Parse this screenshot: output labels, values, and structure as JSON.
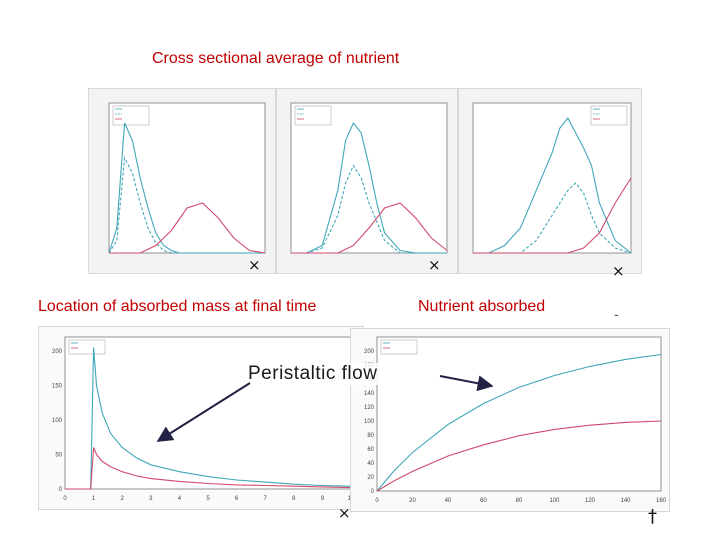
{
  "labels": {
    "top_title": "Cross sectional average of nutrient",
    "bottom_left_title": "Location of absorbed mass at final time",
    "bottom_right_title": "Nutrient absorbed",
    "center_annotation": "Peristaltic flow",
    "marker_x": "×",
    "marker_dagger": "†",
    "stray_dash": "-"
  },
  "colors": {
    "title": "#c00000",
    "peristaltic": "#3fa7b8",
    "poiseuille": "#d04a6a",
    "arrow": "#222244"
  },
  "chart_data": [
    {
      "type": "line",
      "xlim": [
        0,
        10
      ],
      "ylim": [
        0,
        60
      ],
      "legend_position": "top-left",
      "series": [
        {
          "style": "solid",
          "color": "#3fa7b8",
          "x": [
            0,
            0.5,
            1,
            1.5,
            2,
            2.5,
            3,
            3.5,
            4,
            4.5,
            5,
            6,
            7,
            8,
            10
          ],
          "values": [
            0,
            10,
            52,
            45,
            30,
            18,
            8,
            3,
            1,
            0,
            0,
            0,
            0,
            0,
            0
          ]
        },
        {
          "style": "dashed",
          "color": "#3fa7b8",
          "x": [
            0,
            0.5,
            1,
            1.5,
            2,
            2.5,
            3,
            3.5,
            4,
            5,
            10
          ],
          "values": [
            0,
            5,
            38,
            32,
            20,
            10,
            4,
            1,
            0,
            0,
            0
          ]
        },
        {
          "style": "solid",
          "color": "#d04a6a",
          "x": [
            0,
            2,
            3,
            4,
            5,
            6,
            7,
            8,
            9,
            10
          ],
          "values": [
            0,
            0,
            3,
            9,
            18,
            20,
            14,
            6,
            1,
            0
          ]
        }
      ]
    },
    {
      "type": "line",
      "xlim": [
        0,
        10
      ],
      "ylim": [
        0,
        60
      ],
      "legend_position": "top-left",
      "series": [
        {
          "style": "solid",
          "color": "#3fa7b8",
          "x": [
            0,
            1,
            2,
            3,
            3.5,
            4,
            4.5,
            5,
            5.5,
            6,
            7,
            8,
            10
          ],
          "values": [
            0,
            0,
            3,
            25,
            45,
            52,
            48,
            35,
            20,
            8,
            1,
            0,
            0
          ]
        },
        {
          "style": "dashed",
          "color": "#3fa7b8",
          "x": [
            0,
            1,
            2,
            3,
            3.5,
            4,
            4.5,
            5,
            6,
            7,
            10
          ],
          "values": [
            0,
            0,
            2,
            15,
            28,
            35,
            30,
            20,
            5,
            0,
            0
          ]
        },
        {
          "style": "solid",
          "color": "#d04a6a",
          "x": [
            0,
            3,
            4,
            5,
            6,
            7,
            8,
            9,
            10
          ],
          "values": [
            0,
            0,
            3,
            10,
            18,
            20,
            14,
            6,
            1
          ]
        }
      ]
    },
    {
      "type": "line",
      "xlim": [
        0,
        10
      ],
      "ylim": [
        0,
        60
      ],
      "legend_position": "top-right",
      "series": [
        {
          "style": "solid",
          "color": "#3fa7b8",
          "x": [
            0,
            1,
            2,
            3,
            4,
            5,
            5.5,
            6,
            6.5,
            7,
            7.5,
            8,
            9,
            10
          ],
          "values": [
            0,
            0,
            3,
            10,
            25,
            40,
            50,
            54,
            48,
            42,
            35,
            20,
            5,
            0
          ]
        },
        {
          "style": "dashed",
          "color": "#3fa7b8",
          "x": [
            0,
            3,
            4,
            5,
            6,
            6.5,
            7,
            7.5,
            8,
            9,
            10
          ],
          "values": [
            0,
            0,
            5,
            15,
            25,
            28,
            24,
            15,
            8,
            2,
            0
          ]
        },
        {
          "style": "solid",
          "color": "#d04a6a",
          "x": [
            0,
            6,
            7,
            8,
            9,
            10
          ],
          "values": [
            0,
            0,
            2,
            8,
            20,
            30
          ]
        }
      ]
    },
    {
      "type": "line",
      "xlim": [
        0,
        10
      ],
      "ylim": [
        0,
        220
      ],
      "x_ticks": [
        "0",
        "1",
        "2",
        "3",
        "4",
        "5",
        "6",
        "7",
        "8",
        "9",
        "10"
      ],
      "y_ticks": [
        "0",
        "50",
        "100",
        "150",
        "200"
      ],
      "legend_position": "top-left",
      "series": [
        {
          "color": "#3fa7b8",
          "x": [
            0,
            0.9,
            1,
            1.1,
            1.3,
            1.6,
            2,
            2.5,
            3,
            4,
            5,
            6,
            7,
            8,
            9,
            10
          ],
          "values": [
            0,
            0,
            205,
            150,
            110,
            80,
            60,
            45,
            35,
            25,
            18,
            13,
            10,
            7,
            5,
            4
          ]
        },
        {
          "color": "#d04a6a",
          "x": [
            0,
            0.9,
            1,
            1.1,
            1.3,
            1.6,
            2,
            2.5,
            3,
            4,
            5,
            6,
            7,
            8,
            9,
            10
          ],
          "values": [
            0,
            0,
            60,
            50,
            40,
            32,
            25,
            19,
            15,
            11,
            8,
            6,
            5,
            4,
            3,
            2
          ]
        }
      ]
    },
    {
      "type": "line",
      "xlim": [
        0,
        160
      ],
      "ylim": [
        0,
        220
      ],
      "x_ticks": [
        "0",
        "20",
        "40",
        "60",
        "80",
        "100",
        "120",
        "140",
        "160"
      ],
      "y_ticks": [
        "0",
        "20",
        "40",
        "60",
        "80",
        "100",
        "120",
        "140",
        "160",
        "180",
        "200"
      ],
      "legend_position": "top-left",
      "series": [
        {
          "color": "#3fa7b8",
          "x": [
            0,
            10,
            20,
            40,
            60,
            80,
            100,
            120,
            140,
            160
          ],
          "values": [
            0,
            30,
            55,
            95,
            125,
            148,
            165,
            178,
            188,
            195
          ]
        },
        {
          "color": "#d04a6a",
          "x": [
            0,
            10,
            20,
            40,
            60,
            80,
            100,
            120,
            140,
            160
          ],
          "values": [
            0,
            15,
            28,
            50,
            66,
            79,
            88,
            94,
            98,
            100
          ]
        }
      ]
    }
  ]
}
